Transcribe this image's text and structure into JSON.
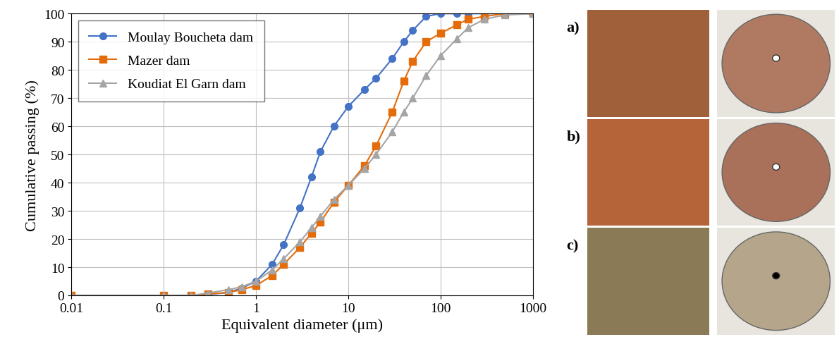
{
  "chart_data": {
    "type": "line",
    "x_label": "Equivalent diameter (μm)",
    "y_label": "Cumulative passing (%)",
    "log": "x",
    "grid": true,
    "legend": "upper left",
    "x": [
      0.01,
      0.1,
      0.2,
      0.3,
      0.5,
      0.7,
      1,
      1.5,
      2,
      3,
      4,
      5,
      7,
      10,
      15,
      20,
      30,
      40,
      50,
      70,
      100,
      150,
      200,
      300,
      500,
      1000
    ],
    "series": [
      {
        "name": "Moulay Boucheta dam",
        "color": "#4472c4",
        "marker": "circle",
        "line_style": "solid",
        "values": [
          0,
          0,
          0,
          0.3,
          1,
          2.5,
          5,
          11,
          18,
          31,
          42,
          51,
          60,
          67,
          73,
          77,
          84,
          90,
          94,
          99,
          100,
          100,
          100,
          100,
          100,
          100
        ]
      },
      {
        "name": "Mazer dam",
        "color": "#e46c0a",
        "marker": "square",
        "line_style": "solid",
        "values": [
          0,
          0,
          0,
          0.5,
          1,
          2,
          3.5,
          7,
          11,
          17,
          22,
          26,
          33,
          39,
          46,
          53,
          65,
          76,
          83,
          90,
          93,
          96,
          98,
          99,
          100,
          100
        ]
      },
      {
        "name": "Koudiat El Garn dam",
        "color": "#a5a5a5",
        "marker": "triangle",
        "line_style": "solid",
        "values": [
          0,
          0,
          0,
          0.8,
          2,
          3,
          5,
          9,
          13,
          19,
          24,
          28,
          34,
          39,
          45,
          50,
          58,
          65,
          70,
          78,
          85,
          91,
          95,
          98,
          99.5,
          100
        ]
      }
    ],
    "xlim": [
      0.01,
      1000
    ],
    "xticks": [
      0.01,
      0.1,
      1,
      10,
      100,
      1000
    ],
    "ylim": [
      0,
      100
    ],
    "yticks": [
      0,
      10,
      20,
      30,
      40,
      50,
      60,
      70,
      80,
      90,
      100
    ]
  },
  "panel_labels": [
    "a)",
    "b)",
    "c)"
  ]
}
